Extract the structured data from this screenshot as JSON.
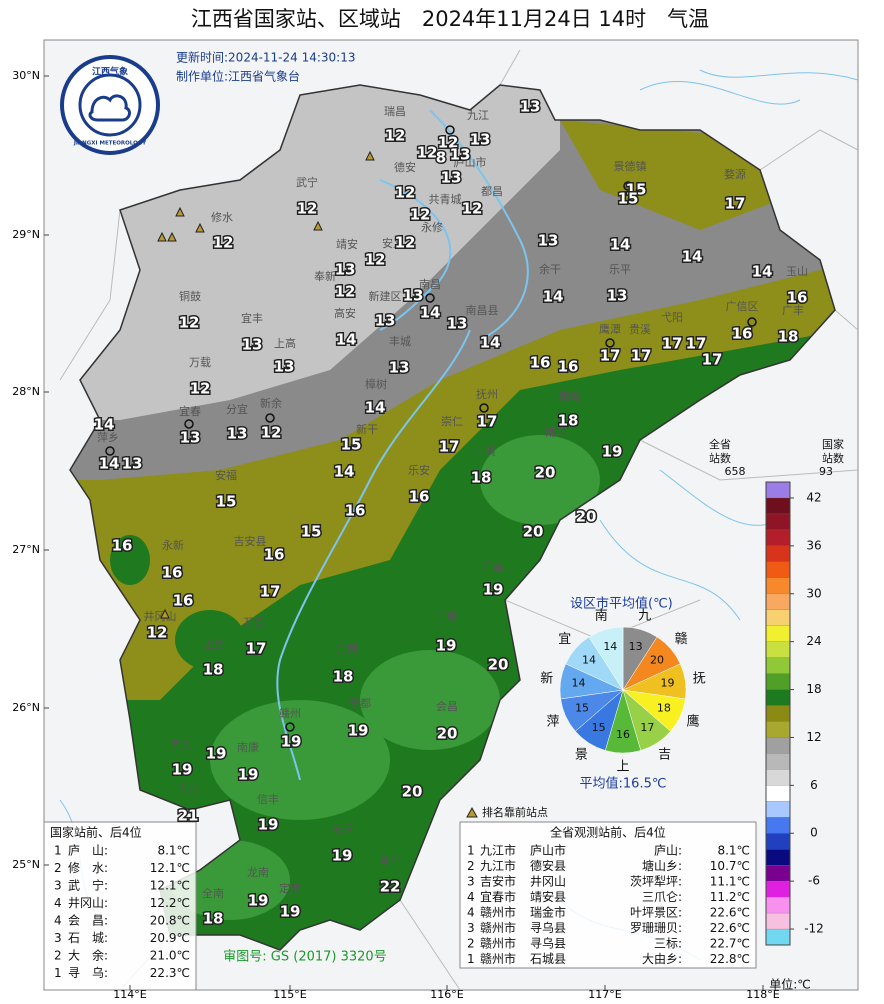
{
  "header": {
    "title": "江西省国家站、区域站　2024年11月24日 14时　气温",
    "update_time": "更新时间:2024-11-24 14:30:13",
    "producer": "制作单位:江西省气象台",
    "logo_cn": "江西气象",
    "logo_en": "JIANGXI METEOROLOGY"
  },
  "axes": {
    "lat_labels": [
      "30°N",
      "29°N",
      "28°N",
      "27°N",
      "26°N",
      "25°N"
    ],
    "lon_labels": [
      "114°E",
      "115°E",
      "116°E",
      "117°E",
      "118°E"
    ]
  },
  "map_labels": {
    "temperatures": [
      13,
      12,
      12,
      13,
      12,
      8,
      13,
      13,
      12,
      12,
      12,
      12,
      15,
      15,
      17,
      12,
      12,
      13,
      14,
      13,
      12,
      14,
      14,
      12,
      13,
      14,
      13,
      16,
      12,
      13,
      14,
      13,
      13,
      14,
      16,
      18,
      13,
      13,
      14,
      16,
      16,
      17,
      17,
      17,
      17,
      17,
      12,
      14,
      14,
      13,
      13,
      12,
      17,
      18,
      17,
      15,
      19,
      14,
      13,
      14,
      18,
      20,
      15,
      16,
      16,
      20,
      20,
      16,
      15,
      16,
      16,
      17,
      16,
      19,
      12,
      17,
      19,
      18,
      18,
      20,
      19,
      19,
      20,
      19,
      19,
      19,
      20,
      21,
      19,
      19,
      22,
      19,
      18,
      19
    ],
    "cities": [
      "瑞昌",
      "九江",
      "德安",
      "庐山市",
      "武宁",
      "共青城",
      "都昌",
      "修水",
      "靖安",
      "安义",
      "永修",
      "奉新",
      "南昌",
      "南昌县",
      "新建区",
      "铜鼓",
      "宜丰",
      "高安",
      "余干",
      "鹰潭",
      "贵溪",
      "弋阳",
      "广信区",
      "广丰",
      "玉山",
      "婺源",
      "景德镇",
      "乐平",
      "上高",
      "丰城",
      "樟树",
      "万载",
      "分宜",
      "宜春",
      "新余",
      "萍乡",
      "新干",
      "崇仁",
      "抚州",
      "南城",
      "乐安",
      "宜黄",
      "南丰",
      "安福",
      "永新",
      "吉安县",
      "井冈山",
      "万安",
      "兴国",
      "宁都",
      "广昌",
      "上犹",
      "赣州",
      "于都",
      "会昌",
      "崇义",
      "南康",
      "大余",
      "信丰",
      "安远",
      "寻乌",
      "龙南",
      "全南",
      "定南"
    ]
  },
  "pie": {
    "title": "设区市平均值(℃)",
    "labels": [
      "九",
      "赣",
      "抚",
      "鹰",
      "吉",
      "上",
      "景",
      "萍",
      "新",
      "宜",
      "南"
    ],
    "values": [
      13,
      20,
      19,
      18,
      17,
      16,
      15,
      15,
      14,
      14,
      14
    ],
    "colors": [
      "#8c8c8c",
      "#f5871f",
      "#f0c020",
      "#f8f020",
      "#98d048",
      "#58b838",
      "#3878e0",
      "#4c88e8",
      "#64a8f0",
      "#a0d8f8",
      "#c8f0f8"
    ],
    "average": "平均值:16.5℃"
  },
  "legend": {
    "all_stations_label": [
      "全省",
      "站数"
    ],
    "all_stations": "658",
    "national_label": [
      "国家",
      "站数"
    ],
    "national": "93",
    "lim": [
      -14,
      44
    ],
    "ticks": [
      42,
      36,
      30,
      24,
      18,
      12,
      6,
      0,
      -6,
      -12
    ],
    "unit": "单位:℃",
    "colors": [
      "#9b7de8",
      "#6e0f1e",
      "#8e1426",
      "#b41e2a",
      "#d8341c",
      "#f05a14",
      "#f8882c",
      "#f8a860",
      "#f8d070",
      "#f0f030",
      "#c8e040",
      "#90c838",
      "#50a028",
      "#1e7a1e",
      "#8a8a14",
      "#a8a830",
      "#a0a0a0",
      "#b8b8b8",
      "#d8d8d8",
      "#ffffff",
      "#a8c8ff",
      "#4878f0",
      "#2040c0",
      "#0a0a80",
      "#7a0090",
      "#e020e0",
      "#f890f0",
      "#f8c0e0",
      "#70d8f0"
    ],
    "marker_note": "排名靠前站点"
  },
  "national_table": {
    "title": "国家站前、后4位",
    "rows": [
      [
        "1",
        "庐　山:",
        "8.1℃"
      ],
      [
        "2",
        "修　水:",
        "12.1℃"
      ],
      [
        "3",
        "武　宁:",
        "12.1℃"
      ],
      [
        "4",
        "井冈山:",
        "12.2℃"
      ],
      [
        "4",
        "会　昌:",
        "20.8℃"
      ],
      [
        "3",
        "石　城:",
        "20.9℃"
      ],
      [
        "2",
        "大　余:",
        "21.0℃"
      ],
      [
        "1",
        "寻　乌:",
        "22.3℃"
      ]
    ]
  },
  "all_table": {
    "title": "全省观测站前、后4位",
    "rows": [
      [
        "1",
        "九江市",
        "庐山市",
        "庐山:",
        "8.1℃"
      ],
      [
        "2",
        "九江市",
        "德安县",
        "塘山乡:",
        "10.7℃"
      ],
      [
        "3",
        "吉安市",
        "井冈山",
        "茨坪犁坪:",
        "11.1℃"
      ],
      [
        "4",
        "宜春市",
        "靖安县",
        "三爪仑:",
        "11.2℃"
      ],
      [
        "4",
        "赣州市",
        "瑞金市",
        "叶坪景区:",
        "22.6℃"
      ],
      [
        "3",
        "赣州市",
        "寻乌县",
        "罗珊珊贝:",
        "22.6℃"
      ],
      [
        "2",
        "赣州市",
        "寻乌县",
        "三标:",
        "22.7℃"
      ],
      [
        "1",
        "赣州市",
        "石城县",
        "大由乡:",
        "22.8℃"
      ]
    ]
  },
  "review_number": "审图号: GS (2017) 3320号"
}
